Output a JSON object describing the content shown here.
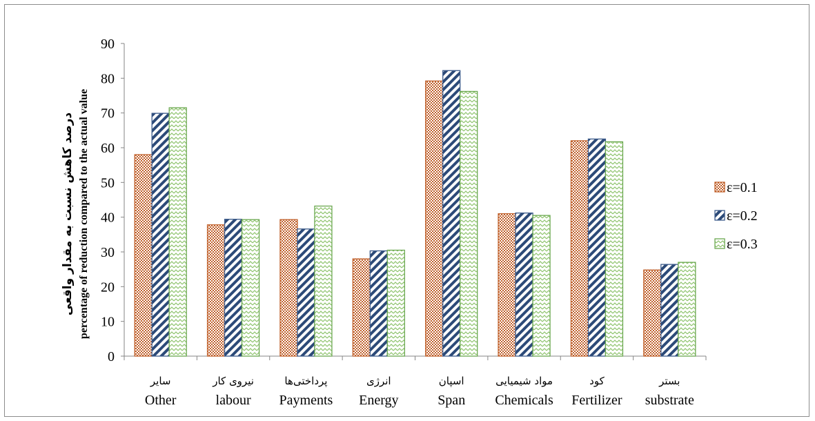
{
  "chart_data": {
    "type": "bar",
    "categories": [
      {
        "fa": "سایر",
        "en": "Other"
      },
      {
        "fa": "نیروی کار",
        "en": "labour"
      },
      {
        "fa": "پرداختی‌ها",
        "en": "Payments"
      },
      {
        "fa": "انرژی",
        "en": "Energy"
      },
      {
        "fa": "اسپان",
        "en": "Span"
      },
      {
        "fa": "مواد شیمیایی",
        "en": "Chemicals"
      },
      {
        "fa": "کود",
        "en": "Fertilizer"
      },
      {
        "fa": "بستر",
        "en": "substrate"
      }
    ],
    "series": [
      {
        "name": "ε=0.1",
        "values": [
          58,
          37.8,
          39.3,
          28,
          79.2,
          41,
          62,
          24.8
        ],
        "color": "#c0602b",
        "pattern": "crosshatch"
      },
      {
        "name": "ε=0.2",
        "values": [
          69.9,
          39.4,
          36.6,
          30.3,
          82.2,
          41.2,
          62.5,
          26.4
        ],
        "color": "#3b5a8a",
        "pattern": "diagonal-stripes"
      },
      {
        "name": "ε=0.3",
        "values": [
          71.5,
          39.3,
          43.2,
          30.5,
          76.2,
          40.5,
          61.7,
          27
        ],
        "color": "#6aa84f",
        "pattern": "zigzag"
      }
    ],
    "ylabel_fa": "درصد کاهش نسبت به مقدار واقعی",
    "ylabel_en": "percentage of reduction  compared to the actual value",
    "ylim": [
      0,
      90
    ],
    "yticks": [
      0,
      10,
      20,
      30,
      40,
      50,
      60,
      70,
      80,
      90
    ],
    "grid": false,
    "legend_position": "right"
  }
}
